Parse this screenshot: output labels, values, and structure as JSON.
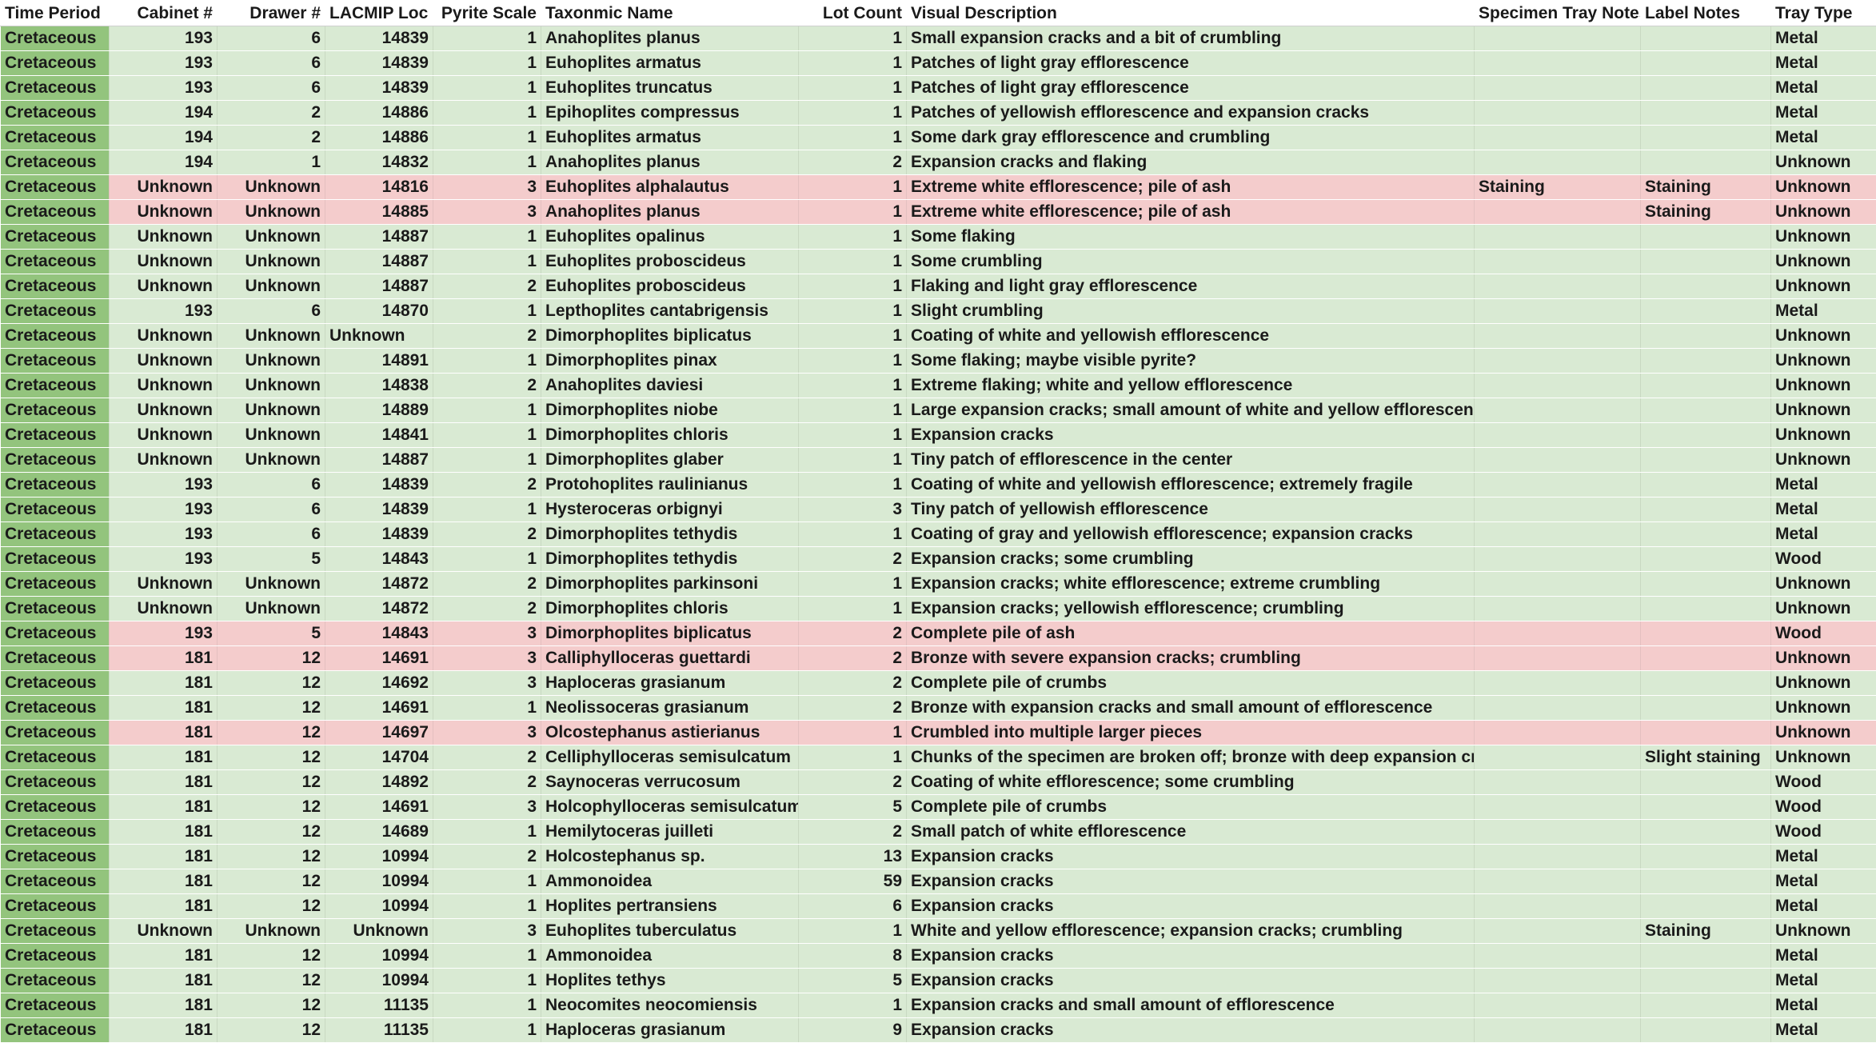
{
  "headers": {
    "time_period": "Time Period",
    "cabinet": "Cabinet #",
    "drawer": "Drawer #",
    "lacmip": "LACMIP Loc #",
    "pyrite": "Pyrite Scale",
    "taxon": "Taxonmic Name",
    "lot": "Lot Count",
    "visual": "Visual Description",
    "tray_notes": "Specimen Tray Notes",
    "label_notes": "Label Notes",
    "tray_type": "Tray Type"
  },
  "colors": {
    "time_col": "#93c47d",
    "green_row": "#d9ead3",
    "red_row": "#f4cccc"
  },
  "rows": [
    {
      "highlight": "green",
      "time": "Cretaceous",
      "cabinet": "193",
      "drawer": "6",
      "loc": "14839",
      "pyrite": "1",
      "taxon": "Anahoplites planus",
      "lot": "1",
      "visual": "Small expansion cracks and a bit of crumbling",
      "tray_notes": "",
      "label_notes": "",
      "tray": "Metal"
    },
    {
      "highlight": "green",
      "time": "Cretaceous",
      "cabinet": "193",
      "drawer": "6",
      "loc": "14839",
      "pyrite": "1",
      "taxon": "Euhoplites armatus",
      "lot": "1",
      "visual": "Patches of light gray efflorescence",
      "tray_notes": "",
      "label_notes": "",
      "tray": "Metal"
    },
    {
      "highlight": "green",
      "time": "Cretaceous",
      "cabinet": "193",
      "drawer": "6",
      "loc": "14839",
      "pyrite": "1",
      "taxon": "Euhoplites truncatus",
      "lot": "1",
      "visual": "Patches of light gray efflorescence",
      "tray_notes": "",
      "label_notes": "",
      "tray": "Metal"
    },
    {
      "highlight": "green",
      "time": "Cretaceous",
      "cabinet": "194",
      "drawer": "2",
      "loc": "14886",
      "pyrite": "1",
      "taxon": "Epihoplites compressus",
      "lot": "1",
      "visual": "Patches of yellowish efflorescence and expansion cracks",
      "tray_notes": "",
      "label_notes": "",
      "tray": "Metal"
    },
    {
      "highlight": "green",
      "time": "Cretaceous",
      "cabinet": "194",
      "drawer": "2",
      "loc": "14886",
      "pyrite": "1",
      "taxon": "Euhoplites armatus",
      "lot": "1",
      "visual": "Some dark gray efflorescence and crumbling",
      "tray_notes": "",
      "label_notes": "",
      "tray": "Metal"
    },
    {
      "highlight": "green",
      "time": "Cretaceous",
      "cabinet": "194",
      "drawer": "1",
      "loc": "14832",
      "pyrite": "1",
      "taxon": "Anahoplites planus",
      "lot": "2",
      "visual": "Expansion cracks and flaking",
      "tray_notes": "",
      "label_notes": "",
      "tray": "Unknown"
    },
    {
      "highlight": "red",
      "time": "Cretaceous",
      "cabinet": "Unknown",
      "drawer": "Unknown",
      "loc": "14816",
      "pyrite": "3",
      "taxon": "Euhoplites alphalautus",
      "lot": "1",
      "visual": "Extreme white efflorescence; pile of ash",
      "tray_notes": "Staining",
      "label_notes": "Staining",
      "tray": "Unknown"
    },
    {
      "highlight": "red",
      "time": "Cretaceous",
      "cabinet": "Unknown",
      "drawer": "Unknown",
      "loc": "14885",
      "pyrite": "3",
      "taxon": "Anahoplites planus",
      "lot": "1",
      "visual": "Extreme white efflorescence; pile of ash",
      "tray_notes": "",
      "label_notes": "Staining",
      "tray": "Unknown"
    },
    {
      "highlight": "green",
      "time": "Cretaceous",
      "cabinet": "Unknown",
      "drawer": "Unknown",
      "loc": "14887",
      "pyrite": "1",
      "taxon": "Euhoplites opalinus",
      "lot": "1",
      "visual": "Some flaking",
      "tray_notes": "",
      "label_notes": "",
      "tray": "Unknown"
    },
    {
      "highlight": "green",
      "time": "Cretaceous",
      "cabinet": "Unknown",
      "drawer": "Unknown",
      "loc": "14887",
      "pyrite": "1",
      "taxon": "Euhoplites proboscideus",
      "lot": "1",
      "visual": "Some crumbling",
      "tray_notes": "",
      "label_notes": "",
      "tray": "Unknown"
    },
    {
      "highlight": "green",
      "time": "Cretaceous",
      "cabinet": "Unknown",
      "drawer": "Unknown",
      "loc": "14887",
      "pyrite": "2",
      "taxon": "Euhoplites proboscideus",
      "lot": "1",
      "visual": "Flaking and light gray efflorescence",
      "tray_notes": "",
      "label_notes": "",
      "tray": "Unknown"
    },
    {
      "highlight": "green",
      "time": "Cretaceous",
      "cabinet": "193",
      "drawer": "6",
      "loc": "14870",
      "pyrite": "1",
      "taxon": "Lepthoplites cantabrigensis",
      "lot": "1",
      "visual": "Slight crumbling",
      "tray_notes": "",
      "label_notes": "",
      "tray": "Metal"
    },
    {
      "highlight": "green",
      "time": "Cretaceous",
      "cabinet": "Unknown",
      "drawer": "Unknown",
      "loc": "Unknown",
      "loc_align": "left",
      "pyrite": "2",
      "taxon": "Dimorphoplites biplicatus",
      "lot": "1",
      "visual": "Coating of white and yellowish efflorescence",
      "tray_notes": "",
      "label_notes": "",
      "tray": "Unknown"
    },
    {
      "highlight": "green",
      "time": "Cretaceous",
      "cabinet": "Unknown",
      "drawer": "Unknown",
      "loc": "14891",
      "pyrite": "1",
      "taxon": "Dimorphoplites pinax",
      "lot": "1",
      "visual": "Some flaking; maybe visible pyrite?",
      "tray_notes": "",
      "label_notes": "",
      "tray": "Unknown"
    },
    {
      "highlight": "green",
      "time": "Cretaceous",
      "cabinet": "Unknown",
      "drawer": "Unknown",
      "loc": "14838",
      "pyrite": "2",
      "taxon": "Anahoplites daviesi",
      "lot": "1",
      "visual": "Extreme flaking; white and yellow efflorescence",
      "tray_notes": "",
      "label_notes": "",
      "tray": "Unknown"
    },
    {
      "highlight": "green",
      "time": "Cretaceous",
      "cabinet": "Unknown",
      "drawer": "Unknown",
      "loc": "14889",
      "pyrite": "1",
      "taxon": "Dimorphoplites niobe",
      "lot": "1",
      "visual": "Large expansion cracks; small amount of white and yellow efflorescence",
      "tray_notes": "",
      "label_notes": "",
      "tray": "Unknown"
    },
    {
      "highlight": "green",
      "time": "Cretaceous",
      "cabinet": "Unknown",
      "drawer": "Unknown",
      "loc": "14841",
      "pyrite": "1",
      "taxon": "Dimorphoplites chloris",
      "lot": "1",
      "visual": "Expansion cracks",
      "tray_notes": "",
      "label_notes": "",
      "tray": "Unknown"
    },
    {
      "highlight": "green",
      "time": "Cretaceous",
      "cabinet": "Unknown",
      "drawer": "Unknown",
      "loc": "14887",
      "pyrite": "1",
      "taxon": "Dimorphoplites glaber",
      "lot": "1",
      "visual": "Tiny patch of efflorescence in the center",
      "tray_notes": "",
      "label_notes": "",
      "tray": "Unknown"
    },
    {
      "highlight": "green",
      "time": "Cretaceous",
      "cabinet": "193",
      "drawer": "6",
      "loc": "14839",
      "pyrite": "2",
      "taxon": "Protohoplites raulinianus",
      "lot": "1",
      "visual": "Coating of white and yellowish efflorescence; extremely fragile",
      "tray_notes": "",
      "label_notes": "",
      "tray": "Metal"
    },
    {
      "highlight": "green",
      "time": "Cretaceous",
      "cabinet": "193",
      "drawer": "6",
      "loc": "14839",
      "pyrite": "1",
      "taxon": "Hysteroceras orbignyi",
      "lot": "3",
      "visual": "Tiny patch of yellowish efflorescence",
      "tray_notes": "",
      "label_notes": "",
      "tray": "Metal"
    },
    {
      "highlight": "green",
      "time": "Cretaceous",
      "cabinet": "193",
      "drawer": "6",
      "loc": "14839",
      "pyrite": "2",
      "taxon": "Dimorphoplites tethydis",
      "lot": "1",
      "visual": "Coating of gray and yellowish efflorescence; expansion cracks",
      "tray_notes": "",
      "label_notes": "",
      "tray": "Metal"
    },
    {
      "highlight": "green",
      "time": "Cretaceous",
      "cabinet": "193",
      "drawer": "5",
      "loc": "14843",
      "pyrite": "1",
      "taxon": "Dimorphoplites tethydis",
      "lot": "2",
      "visual": "Expansion cracks; some crumbling",
      "tray_notes": "",
      "label_notes": "",
      "tray": "Wood"
    },
    {
      "highlight": "green",
      "time": "Cretaceous",
      "cabinet": "Unknown",
      "drawer": "Unknown",
      "loc": "14872",
      "pyrite": "2",
      "taxon": "Dimorphoplites parkinsoni",
      "lot": "1",
      "visual": "Expansion cracks; white efflorescence; extreme crumbling",
      "tray_notes": "",
      "label_notes": "",
      "tray": "Unknown"
    },
    {
      "highlight": "green",
      "time": "Cretaceous",
      "cabinet": "Unknown",
      "drawer": "Unknown",
      "loc": "14872",
      "pyrite": "2",
      "taxon": "Dimorphoplites chloris",
      "lot": "1",
      "visual": "Expansion cracks; yellowish efflorescence; crumbling",
      "tray_notes": "",
      "label_notes": "",
      "tray": "Unknown"
    },
    {
      "highlight": "red",
      "time": "Cretaceous",
      "cabinet": "193",
      "drawer": "5",
      "loc": "14843",
      "pyrite": "3",
      "taxon": "Dimorphoplites biplicatus",
      "lot": "2",
      "visual": "Complete pile of ash",
      "tray_notes": "",
      "label_notes": "",
      "tray": "Wood"
    },
    {
      "highlight": "red",
      "time": "Cretaceous",
      "cabinet": "181",
      "drawer": "12",
      "loc": "14691",
      "pyrite": "3",
      "taxon": "Calliphylloceras guettardi",
      "lot": "2",
      "visual": "Bronze with severe expansion cracks; crumbling",
      "tray_notes": "",
      "label_notes": "",
      "tray": "Unknown"
    },
    {
      "highlight": "green",
      "time": "Cretaceous",
      "cabinet": "181",
      "drawer": "12",
      "loc": "14692",
      "pyrite": "3",
      "taxon": "Haploceras grasianum",
      "lot": "2",
      "visual": "Complete pile of crumbs",
      "tray_notes": "",
      "label_notes": "",
      "tray": "Unknown"
    },
    {
      "highlight": "green",
      "time": "Cretaceous",
      "cabinet": "181",
      "drawer": "12",
      "loc": "14691",
      "pyrite": "1",
      "taxon": "Neolissoceras grasianum",
      "lot": "2",
      "visual": "Bronze with expansion cracks and small amount of efflorescence",
      "tray_notes": "",
      "label_notes": "",
      "tray": "Unknown"
    },
    {
      "highlight": "red",
      "time": "Cretaceous",
      "cabinet": "181",
      "drawer": "12",
      "loc": "14697",
      "pyrite": "3",
      "taxon": "Olcostephanus astierianus",
      "lot": "1",
      "visual": "Crumbled into multiple larger pieces",
      "tray_notes": "",
      "label_notes": "",
      "tray": "Unknown"
    },
    {
      "highlight": "green",
      "time": "Cretaceous",
      "cabinet": "181",
      "drawer": "12",
      "loc": "14704",
      "pyrite": "2",
      "taxon": "Celliphylloceras semisulcatum",
      "lot": "1",
      "visual": "Chunks of the specimen are broken off; bronze with deep expansion cracks",
      "tray_notes": "",
      "label_notes": "Slight staining",
      "tray": "Unknown"
    },
    {
      "highlight": "green",
      "time": "Cretaceous",
      "cabinet": "181",
      "drawer": "12",
      "loc": "14892",
      "pyrite": "2",
      "taxon": "Saynoceras verrucosum",
      "lot": "2",
      "visual": "Coating of white efflorescence; some crumbling",
      "tray_notes": "",
      "label_notes": "",
      "tray": "Wood"
    },
    {
      "highlight": "green",
      "time": "Cretaceous",
      "cabinet": "181",
      "drawer": "12",
      "loc": "14691",
      "pyrite": "3",
      "taxon": "Holcophylloceras semisulcatum",
      "lot": "5",
      "visual": "Complete pile of crumbs",
      "tray_notes": "",
      "label_notes": "",
      "tray": "Wood"
    },
    {
      "highlight": "green",
      "time": "Cretaceous",
      "cabinet": "181",
      "drawer": "12",
      "loc": "14689",
      "pyrite": "1",
      "taxon": "Hemilytoceras juilleti",
      "lot": "2",
      "visual": "Small patch of white efflorescence",
      "tray_notes": "",
      "label_notes": "",
      "tray": "Wood"
    },
    {
      "highlight": "green",
      "time": "Cretaceous",
      "cabinet": "181",
      "drawer": "12",
      "loc": "10994",
      "pyrite": "2",
      "taxon": "Holcostephanus sp.",
      "lot": "13",
      "visual": "Expansion cracks",
      "tray_notes": "",
      "label_notes": "",
      "tray": "Metal"
    },
    {
      "highlight": "green",
      "time": "Cretaceous",
      "cabinet": "181",
      "drawer": "12",
      "loc": "10994",
      "pyrite": "1",
      "taxon": "Ammonoidea",
      "lot": "59",
      "visual": "Expansion cracks",
      "tray_notes": "",
      "label_notes": "",
      "tray": "Metal"
    },
    {
      "highlight": "green",
      "time": "Cretaceous",
      "cabinet": "181",
      "drawer": "12",
      "loc": "10994",
      "pyrite": "1",
      "taxon": "Hoplites pertransiens",
      "lot": "6",
      "visual": "Expansion cracks",
      "tray_notes": "",
      "label_notes": "",
      "tray": "Metal"
    },
    {
      "highlight": "green",
      "time": "Cretaceous",
      "cabinet": "Unknown",
      "drawer": "Unknown",
      "loc": "Unknown",
      "pyrite": "3",
      "taxon": "Euhoplites tuberculatus",
      "lot": "1",
      "visual": "White and yellow efflorescence; expansion cracks; crumbling",
      "tray_notes": "",
      "label_notes": "Staining",
      "tray": "Unknown"
    },
    {
      "highlight": "green",
      "time": "Cretaceous",
      "cabinet": "181",
      "drawer": "12",
      "loc": "10994",
      "pyrite": "1",
      "taxon": "Ammonoidea",
      "lot": "8",
      "visual": "Expansion cracks",
      "tray_notes": "",
      "label_notes": "",
      "tray": "Metal"
    },
    {
      "highlight": "green",
      "time": "Cretaceous",
      "cabinet": "181",
      "drawer": "12",
      "loc": "10994",
      "pyrite": "1",
      "taxon": "Hoplites tethys",
      "lot": "5",
      "visual": "Expansion cracks",
      "tray_notes": "",
      "label_notes": "",
      "tray": "Metal"
    },
    {
      "highlight": "green",
      "time": "Cretaceous",
      "cabinet": "181",
      "drawer": "12",
      "loc": "11135",
      "pyrite": "1",
      "taxon": "Neocomites neocomiensis",
      "lot": "1",
      "visual": "Expansion cracks and small amount of efflorescence",
      "tray_notes": "",
      "label_notes": "",
      "tray": "Metal"
    },
    {
      "highlight": "green",
      "time": "Cretaceous",
      "cabinet": "181",
      "drawer": "12",
      "loc": "11135",
      "pyrite": "1",
      "taxon": "Haploceras grasianum",
      "lot": "9",
      "visual": "Expansion cracks",
      "tray_notes": "",
      "label_notes": "",
      "tray": "Metal"
    }
  ]
}
